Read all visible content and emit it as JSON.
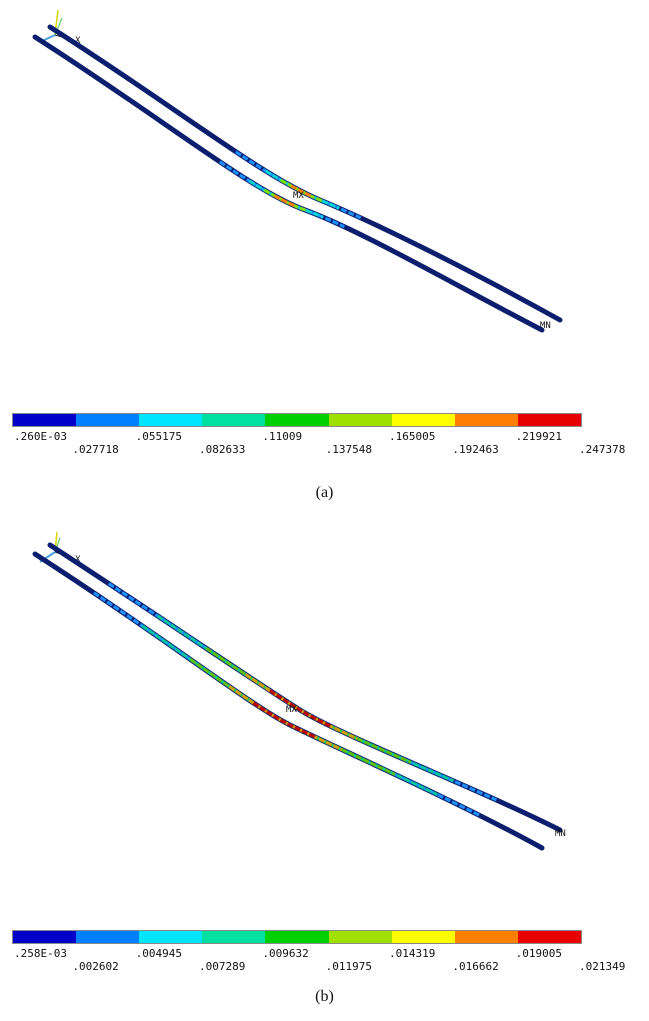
{
  "panels": [
    {
      "caption": "(a)",
      "triad_label": "X",
      "max_label": "MX",
      "min_label": "MN",
      "legend_ticks": [
        ".260E-03",
        ".027718",
        ".055175",
        ".082633",
        ".11009",
        ".137548",
        ".165005",
        ".192463",
        ".219921",
        ".247378"
      ],
      "legend_colors": [
        "#0000c8",
        "#0080ff",
        "#00e5ff",
        "#00e0a0",
        "#00d000",
        "#a0e000",
        "#ffff00",
        "#ff8000",
        "#e80000"
      ],
      "hotspots": [
        {
          "color": "#1e90ff",
          "t0": 0.38,
          "t1": 0.62
        },
        {
          "color": "#00d8d8",
          "t0": 0.44,
          "t1": 0.58
        },
        {
          "color": "#80e000",
          "t0": 0.47,
          "t1": 0.55
        },
        {
          "color": "#ff8000",
          "t0": 0.49,
          "t1": 0.53
        }
      ]
    },
    {
      "caption": "(b)",
      "triad_label": "X",
      "max_label": "MX",
      "min_label": "MN",
      "legend_ticks": [
        ".258E-03",
        ".002602",
        ".004945",
        ".007289",
        ".009632",
        ".011975",
        ".014319",
        ".016662",
        ".019005",
        ".021349"
      ],
      "legend_colors": [
        "#0000c8",
        "#0080ff",
        "#00e5ff",
        "#00e0a0",
        "#00d000",
        "#a0e000",
        "#ffff00",
        "#ff8000",
        "#e80000"
      ],
      "hotspots": [
        {
          "color": "#1e90ff",
          "t0": 0.12,
          "t1": 0.88
        },
        {
          "color": "#00c8a0",
          "t0": 0.22,
          "t1": 0.8
        },
        {
          "color": "#60c000",
          "t0": 0.32,
          "t1": 0.72
        },
        {
          "color": "#d0a000",
          "t0": 0.4,
          "t1": 0.62
        },
        {
          "color": "#c00000",
          "t0": 0.45,
          "t1": 0.57
        }
      ]
    }
  ]
}
